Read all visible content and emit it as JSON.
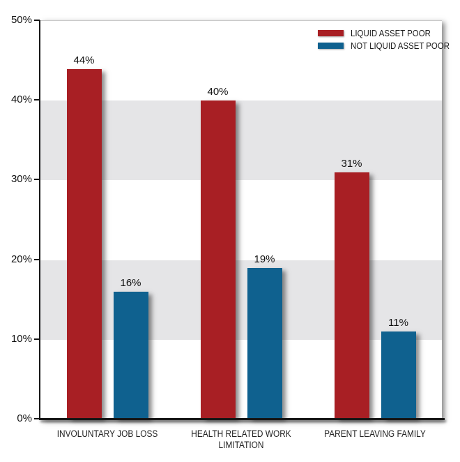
{
  "chart_data": {
    "type": "bar",
    "title": "",
    "xlabel": "",
    "ylabel": "",
    "categories": [
      "INVOLUNTARY JOB LOSS",
      "HEALTH RELATED WORK\nLIMITATION",
      "PARENT LEAVING FAMILY"
    ],
    "series": [
      {
        "name": "LIQUID ASSET POOR",
        "color": "#a81f24",
        "values": [
          44,
          40,
          31
        ],
        "value_labels": [
          "44%",
          "40%",
          "31%"
        ]
      },
      {
        "name": "NOT LIQUID ASSET POOR",
        "color": "#0f618f",
        "values": [
          16,
          19,
          11
        ],
        "value_labels": [
          "16%",
          "19%",
          "11%"
        ]
      }
    ],
    "ylim": [
      0,
      50
    ],
    "yticks": [
      0,
      10,
      20,
      30,
      40,
      50
    ],
    "ytick_labels": [
      "0%",
      "10%",
      "20%",
      "30%",
      "40%",
      "50%"
    ],
    "bands": [
      [
        10,
        20
      ],
      [
        30,
        40
      ]
    ],
    "band_color": "#e5e5e7",
    "axis_color": "#161616",
    "legend_position": "top-right",
    "grid": "horizontal-bands"
  }
}
